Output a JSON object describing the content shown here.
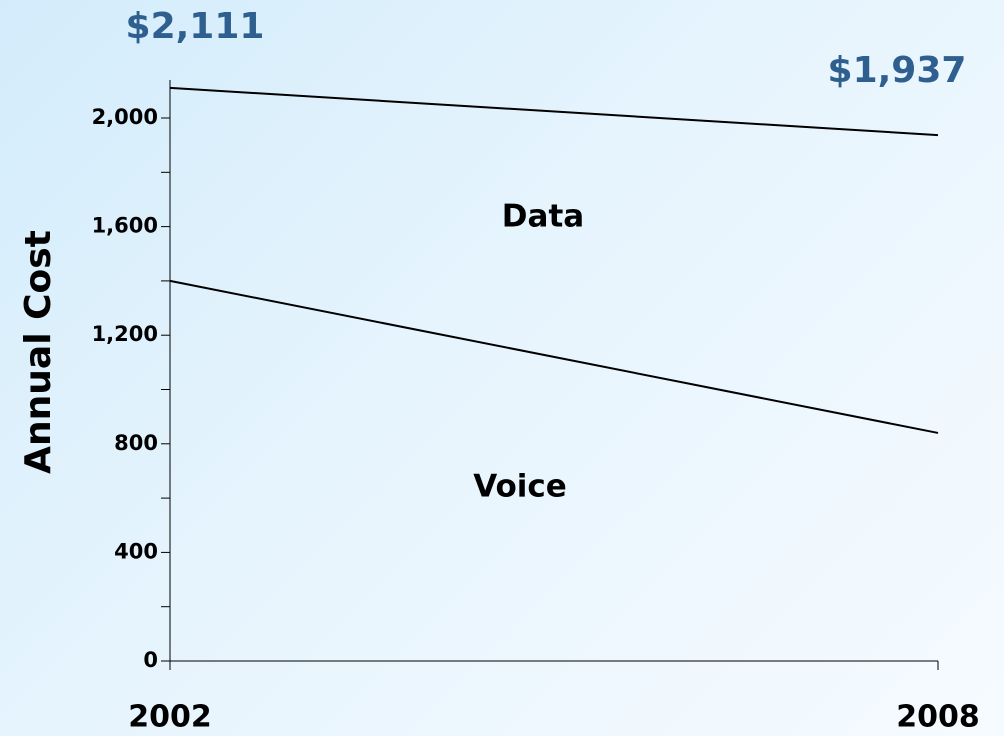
{
  "chart_data": {
    "type": "stacked-line",
    "x": [
      2002,
      2008
    ],
    "xlim": [
      2002,
      2008
    ],
    "xticks": [
      2002,
      2008
    ],
    "ylabel": "Annual Cost",
    "ylim": [
      0,
      2140
    ],
    "yticks": [
      0,
      400,
      800,
      {
        "value": 1200,
        "label": "1,200"
      },
      {
        "value": 1600,
        "label": "1,600"
      },
      {
        "value": 2000,
        "label": "2,000"
      }
    ],
    "yminorticks": [
      200,
      600,
      1000,
      1400,
      1800
    ],
    "series": [
      {
        "name": "Voice",
        "color": "#000000",
        "values": [
          1400,
          840
        ]
      },
      {
        "name": "Data",
        "color": "#000000",
        "values": [
          711,
          1097
        ]
      }
    ],
    "annotations": [
      "$2,111",
      "$1,937"
    ]
  }
}
